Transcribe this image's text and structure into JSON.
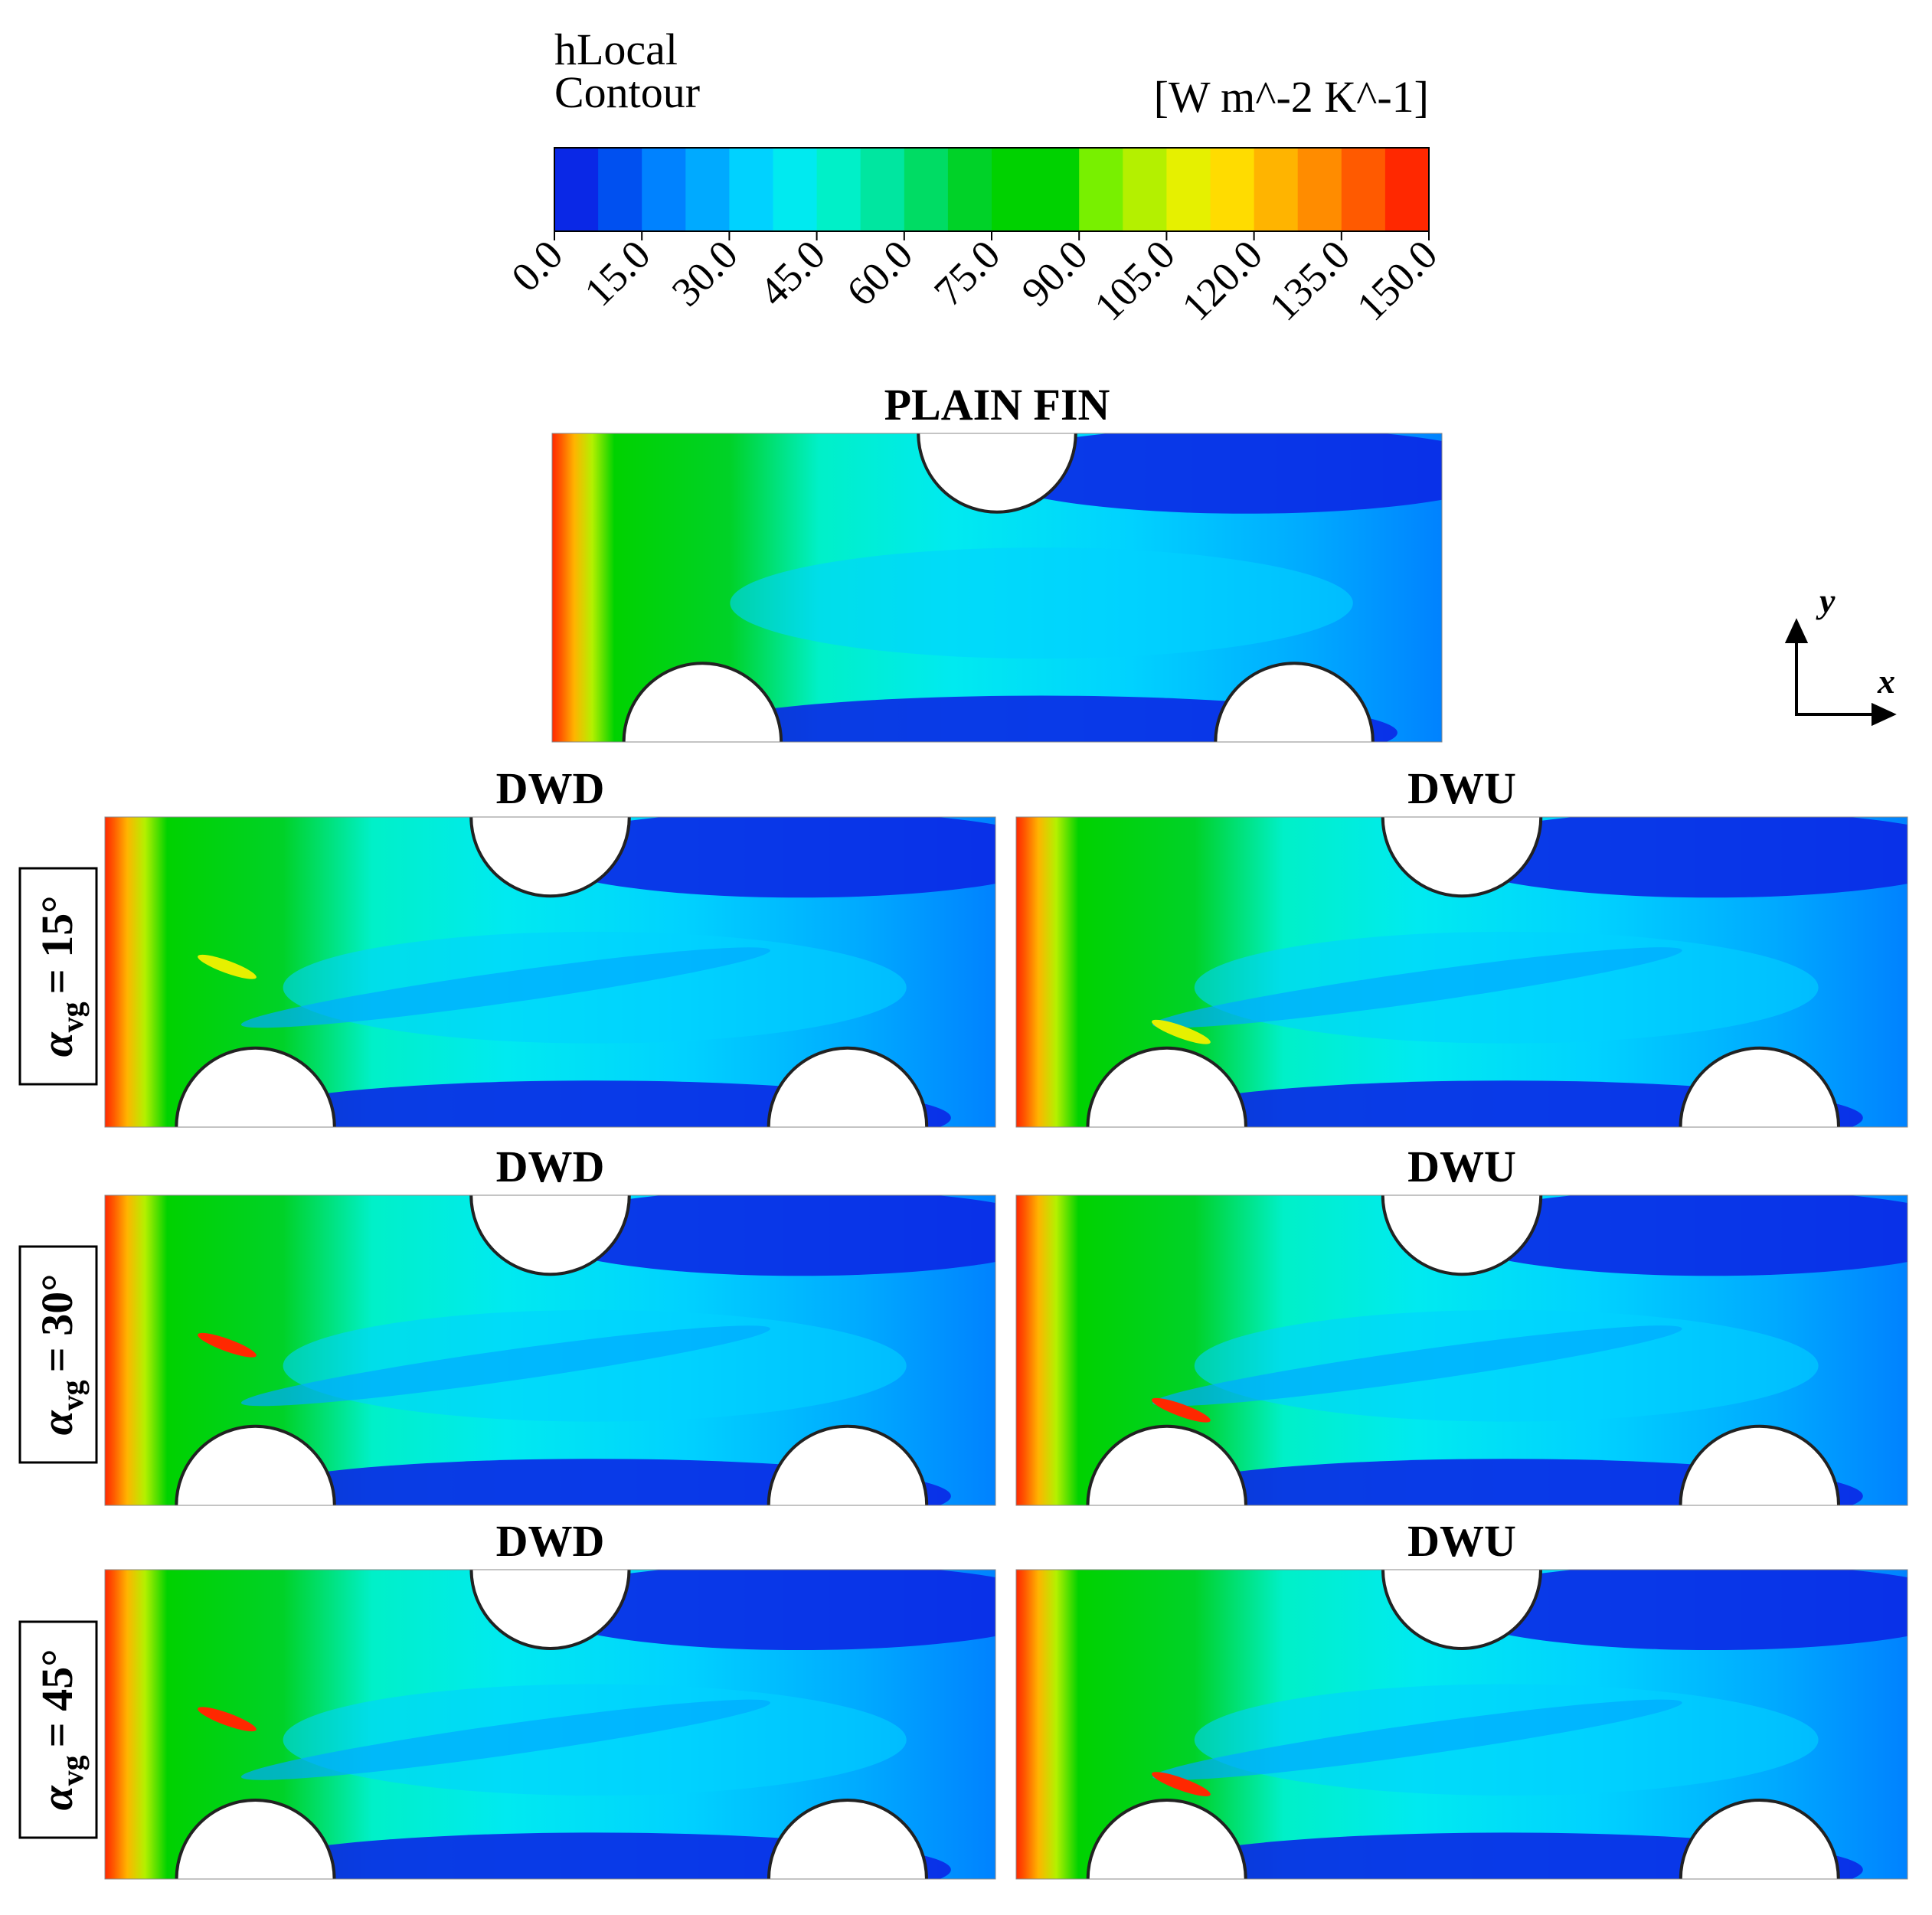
{
  "colorbar": {
    "title": "hLocal",
    "subtitle": "Contour",
    "unit": "[W m^-2 K^-1]",
    "ticks": [
      "0.0",
      "15.0",
      "30.0",
      "45.0",
      "60.0",
      "75.0",
      "90.0",
      "105.0",
      "120.0",
      "135.0",
      "150.0"
    ],
    "colors": [
      "#0a28e6",
      "#0050f0",
      "#0082ff",
      "#00aaff",
      "#00d2ff",
      "#00eaf0",
      "#00f0c8",
      "#00e6a0",
      "#00dc64",
      "#00d228",
      "#00d200",
      "#00d200",
      "#78f000",
      "#b4f000",
      "#e6f000",
      "#ffdc00",
      "#ffb400",
      "#ff8c00",
      "#ff5a00",
      "#ff2800"
    ]
  },
  "axes": {
    "y": "y",
    "x": "x"
  },
  "panels": [
    {
      "title": "PLAIN FIN"
    },
    {
      "title": "DWD"
    },
    {
      "title": "DWU"
    },
    {
      "title": "DWD"
    },
    {
      "title": "DWU"
    },
    {
      "title": "DWD"
    },
    {
      "title": "DWU"
    }
  ],
  "rows": [
    {
      "symbol": "α",
      "subscript": "vg",
      "value": "= 15°"
    },
    {
      "symbol": "α",
      "subscript": "vg",
      "value": "= 30°"
    },
    {
      "symbol": "α",
      "subscript": "vg",
      "value": "= 45°"
    }
  ]
}
